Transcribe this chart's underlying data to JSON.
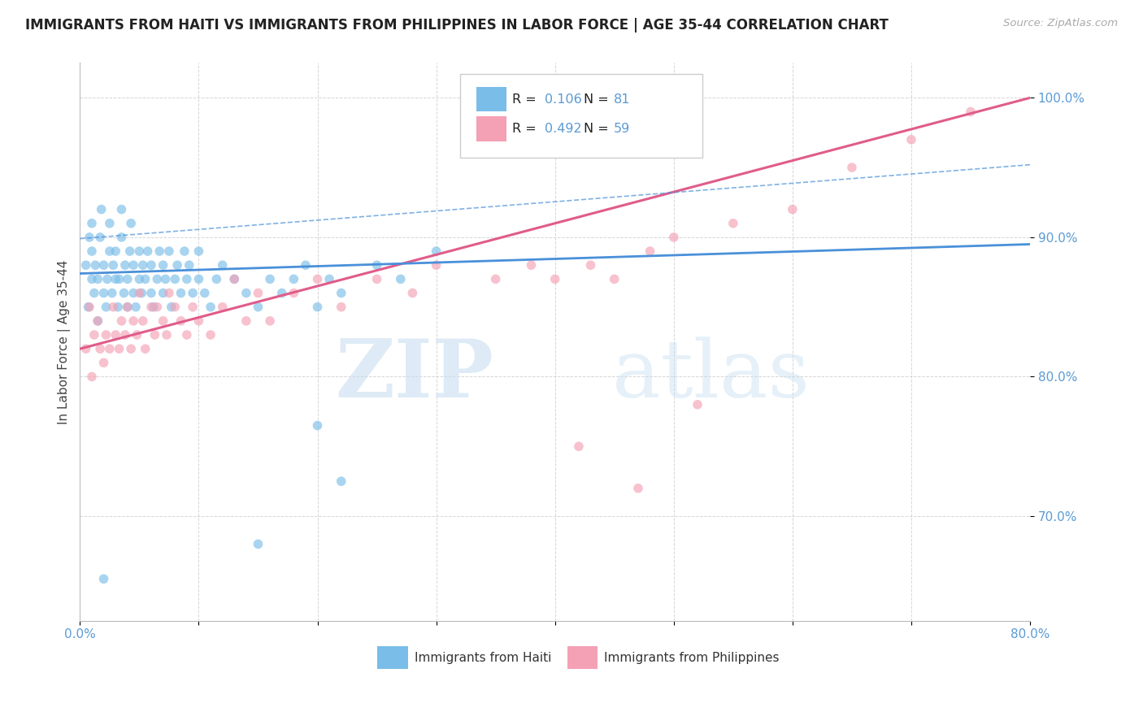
{
  "title": "IMMIGRANTS FROM HAITI VS IMMIGRANTS FROM PHILIPPINES IN LABOR FORCE | AGE 35-44 CORRELATION CHART",
  "source": "Source: ZipAtlas.com",
  "ylabel": "In Labor Force | Age 35-44",
  "xlim": [
    0.0,
    0.8
  ],
  "ylim": [
    0.625,
    1.025
  ],
  "xtick_positions": [
    0.0,
    0.1,
    0.2,
    0.3,
    0.4,
    0.5,
    0.6,
    0.7,
    0.8
  ],
  "xticklabels": [
    "0.0%",
    "",
    "",
    "",
    "",
    "",
    "",
    "",
    "80.0%"
  ],
  "ytick_positions": [
    0.7,
    0.8,
    0.9,
    1.0
  ],
  "ytick_labels": [
    "70.0%",
    "80.0%",
    "90.0%",
    "100.0%"
  ],
  "haiti_color": "#7abde8",
  "phil_color": "#f4a0b5",
  "haiti_line_color": "#4a90d9",
  "phil_line_color": "#e05c8a",
  "haiti_R": 0.106,
  "haiti_N": 81,
  "phil_R": 0.492,
  "phil_N": 59,
  "watermark_zip": "ZIP",
  "watermark_atlas": "atlas",
  "background_color": "#ffffff",
  "grid_color": "#cccccc",
  "tick_color": "#5b9bd5",
  "label_color": "#444444"
}
